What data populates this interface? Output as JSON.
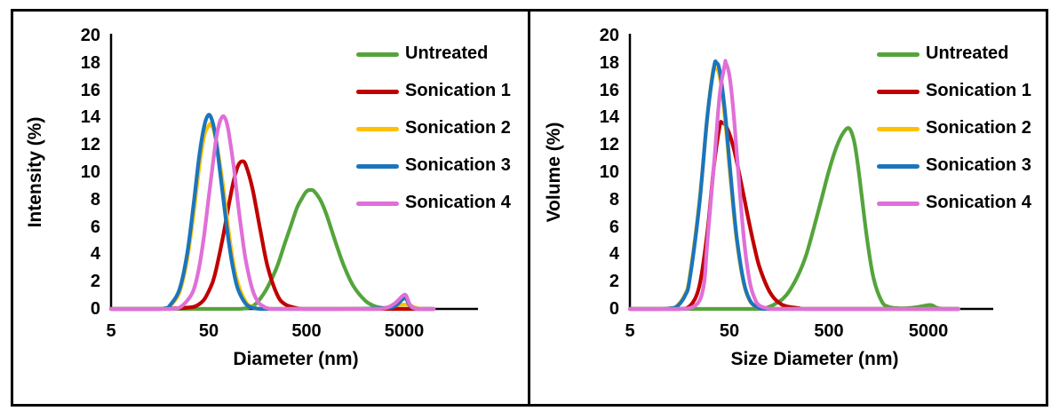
{
  "figure": {
    "description": "Two-panel particle size distribution figure",
    "border_color": "#000000",
    "background_color": "#ffffff"
  },
  "chart_data": [
    {
      "type": "line",
      "title": "",
      "xlabel": "Diameter (nm)",
      "ylabel": "Intensity (%)",
      "x_scale": "log",
      "xlim": [
        5,
        10000
      ],
      "ylim": [
        0,
        20
      ],
      "x_ticks": [
        5,
        50,
        500,
        5000
      ],
      "y_ticks": [
        0,
        2,
        4,
        6,
        8,
        10,
        12,
        14,
        16,
        18,
        20
      ],
      "grid": false,
      "legend_position": "upper-right",
      "series": [
        {
          "name": "Untreated",
          "color": "#54A43B",
          "points": [
            [
              5,
              0
            ],
            [
              50,
              0
            ],
            [
              100,
              0
            ],
            [
              130,
              0.1
            ],
            [
              150,
              0.35
            ],
            [
              170,
              0.8
            ],
            [
              200,
              1.6
            ],
            [
              250,
              3.1
            ],
            [
              300,
              4.8
            ],
            [
              350,
              6.2
            ],
            [
              400,
              7.4
            ],
            [
              450,
              8.1
            ],
            [
              500,
              8.6
            ],
            [
              550,
              8.7
            ],
            [
              600,
              8.6
            ],
            [
              700,
              7.9
            ],
            [
              800,
              6.9
            ],
            [
              1000,
              4.8
            ],
            [
              1200,
              3.2
            ],
            [
              1500,
              1.7
            ],
            [
              2000,
              0.6
            ],
            [
              2500,
              0.2
            ],
            [
              3000,
              0.08
            ],
            [
              3500,
              0.03
            ],
            [
              4000,
              0
            ],
            [
              10000,
              0
            ]
          ]
        },
        {
          "name": "Sonication 1",
          "color": "#C00000",
          "points": [
            [
              5,
              0
            ],
            [
              15,
              0
            ],
            [
              25,
              0.05
            ],
            [
              30,
              0.1
            ],
            [
              35,
              0.15
            ],
            [
              40,
              0.35
            ],
            [
              45,
              0.7
            ],
            [
              50,
              1.3
            ],
            [
              55,
              2.0
            ],
            [
              60,
              3.0
            ],
            [
              70,
              5.3
            ],
            [
              80,
              7.6
            ],
            [
              90,
              9.4
            ],
            [
              100,
              10.5
            ],
            [
              110,
              10.8
            ],
            [
              120,
              10.5
            ],
            [
              140,
              8.8
            ],
            [
              170,
              5.6
            ],
            [
              200,
              3.1
            ],
            [
              250,
              1.05
            ],
            [
              300,
              0.35
            ],
            [
              400,
              0.05
            ],
            [
              500,
              0
            ],
            [
              1000,
              0
            ],
            [
              5000,
              0
            ],
            [
              10000,
              0
            ]
          ]
        },
        {
          "name": "Sonication 2",
          "color": "#FFC000",
          "points": [
            [
              5,
              0
            ],
            [
              10,
              0
            ],
            [
              15,
              0
            ],
            [
              18,
              0.05
            ],
            [
              20,
              0.2
            ],
            [
              25,
              1.2
            ],
            [
              30,
              3.6
            ],
            [
              35,
              7.0
            ],
            [
              40,
              10.4
            ],
            [
              45,
              12.7
            ],
            [
              50,
              13.4
            ],
            [
              53,
              13.5
            ],
            [
              58,
              12.7
            ],
            [
              65,
              10.6
            ],
            [
              70,
              9.0
            ],
            [
              80,
              5.6
            ],
            [
              90,
              3.2
            ],
            [
              100,
              1.8
            ],
            [
              120,
              0.5
            ],
            [
              140,
              0.15
            ],
            [
              170,
              0
            ],
            [
              300,
              0
            ],
            [
              1000,
              0
            ],
            [
              2500,
              0
            ],
            [
              3500,
              0.15
            ],
            [
              4500,
              0.3
            ],
            [
              5500,
              0.3
            ],
            [
              6500,
              0.1
            ],
            [
              7500,
              0
            ],
            [
              10000,
              0
            ]
          ]
        },
        {
          "name": "Sonication 3",
          "color": "#1B75BC",
          "points": [
            [
              5,
              0
            ],
            [
              10,
              0
            ],
            [
              15,
              0
            ],
            [
              18,
              0.05
            ],
            [
              20,
              0.25
            ],
            [
              25,
              1.4
            ],
            [
              30,
              4.0
            ],
            [
              35,
              7.7
            ],
            [
              40,
              11.2
            ],
            [
              45,
              13.4
            ],
            [
              50,
              14.2
            ],
            [
              55,
              13.6
            ],
            [
              60,
              12.1
            ],
            [
              70,
              8.2
            ],
            [
              80,
              4.9
            ],
            [
              90,
              2.7
            ],
            [
              100,
              1.4
            ],
            [
              120,
              0.36
            ],
            [
              140,
              0.1
            ],
            [
              170,
              0
            ],
            [
              300,
              0
            ],
            [
              1000,
              0
            ],
            [
              3000,
              0.05
            ],
            [
              4000,
              0.2
            ],
            [
              4800,
              0.7
            ],
            [
              5200,
              0.75
            ],
            [
              5600,
              0.35
            ],
            [
              6000,
              0.1
            ],
            [
              7000,
              0
            ],
            [
              10000,
              0
            ]
          ]
        },
        {
          "name": "Sonication 4",
          "color": "#E06FD8",
          "points": [
            [
              5,
              0
            ],
            [
              10,
              0
            ],
            [
              20,
              0
            ],
            [
              25,
              0.1
            ],
            [
              30,
              0.6
            ],
            [
              35,
              1.4
            ],
            [
              40,
              3.1
            ],
            [
              45,
              5.5
            ],
            [
              50,
              8.2
            ],
            [
              55,
              10.6
            ],
            [
              60,
              12.6
            ],
            [
              65,
              13.7
            ],
            [
              70,
              14.1
            ],
            [
              75,
              13.8
            ],
            [
              80,
              12.9
            ],
            [
              90,
              10.4
            ],
            [
              100,
              7.6
            ],
            [
              110,
              5.3
            ],
            [
              120,
              3.5
            ],
            [
              140,
              1.4
            ],
            [
              160,
              0.5
            ],
            [
              180,
              0.2
            ],
            [
              200,
              0.05
            ],
            [
              250,
              0
            ],
            [
              1000,
              0
            ],
            [
              2500,
              0
            ],
            [
              3200,
              0.05
            ],
            [
              4000,
              0.4
            ],
            [
              4800,
              0.95
            ],
            [
              5200,
              1.0
            ],
            [
              5600,
              0.45
            ],
            [
              6000,
              0.15
            ],
            [
              6800,
              0
            ],
            [
              10000,
              0
            ]
          ]
        }
      ]
    },
    {
      "type": "line",
      "title": "",
      "xlabel": "Size Diameter (nm)",
      "ylabel": "Volume (%)",
      "x_scale": "log",
      "xlim": [
        5,
        10000
      ],
      "ylim": [
        0,
        20
      ],
      "x_ticks": [
        5,
        50,
        500,
        5000
      ],
      "y_ticks": [
        0,
        2,
        4,
        6,
        8,
        10,
        12,
        14,
        16,
        18,
        20
      ],
      "grid": false,
      "legend_position": "upper-right",
      "series": [
        {
          "name": "Untreated",
          "color": "#54A43B",
          "points": [
            [
              5,
              0
            ],
            [
              50,
              0
            ],
            [
              100,
              0
            ],
            [
              130,
              0.2
            ],
            [
              150,
              0.45
            ],
            [
              170,
              0.7
            ],
            [
              200,
              1.3
            ],
            [
              250,
              2.6
            ],
            [
              300,
              4.1
            ],
            [
              400,
              7.4
            ],
            [
              500,
              10.1
            ],
            [
              600,
              11.9
            ],
            [
              700,
              12.9
            ],
            [
              800,
              13.2
            ],
            [
              900,
              12.2
            ],
            [
              1000,
              10.0
            ],
            [
              1200,
              5.3
            ],
            [
              1400,
              2.3
            ],
            [
              1700,
              0.55
            ],
            [
              2000,
              0.15
            ],
            [
              2500,
              0.05
            ],
            [
              3000,
              0.05
            ],
            [
              4000,
              0.15
            ],
            [
              5000,
              0.28
            ],
            [
              5500,
              0.25
            ],
            [
              6000,
              0.1
            ],
            [
              7000,
              0
            ],
            [
              10000,
              0
            ]
          ]
        },
        {
          "name": "Sonication 1",
          "color": "#C00000",
          "points": [
            [
              5,
              0
            ],
            [
              15,
              0
            ],
            [
              20,
              0.2
            ],
            [
              25,
              1.7
            ],
            [
              30,
              5.6
            ],
            [
              35,
              10.5
            ],
            [
              40,
              13.4
            ],
            [
              42,
              13.6
            ],
            [
              45,
              13.5
            ],
            [
              50,
              12.8
            ],
            [
              55,
              11.8
            ],
            [
              60,
              10.6
            ],
            [
              70,
              8.2
            ],
            [
              80,
              6.1
            ],
            [
              90,
              4.4
            ],
            [
              100,
              3.1
            ],
            [
              120,
              1.6
            ],
            [
              140,
              0.8
            ],
            [
              170,
              0.3
            ],
            [
              200,
              0.15
            ],
            [
              250,
              0.05
            ],
            [
              300,
              0
            ],
            [
              1000,
              0
            ],
            [
              5000,
              0
            ],
            [
              10000,
              0
            ]
          ]
        },
        {
          "name": "Sonication 2",
          "color": "#FFC000",
          "points": [
            [
              5,
              0
            ],
            [
              10,
              0
            ],
            [
              13,
              0.05
            ],
            [
              15,
              0.25
            ],
            [
              18,
              1.1
            ],
            [
              20,
              2.4
            ],
            [
              25,
              7.9
            ],
            [
              30,
              14.0
            ],
            [
              34,
              17.3
            ],
            [
              36,
              17.6
            ],
            [
              40,
              17.0
            ],
            [
              45,
              14.0
            ],
            [
              50,
              10.4
            ],
            [
              55,
              7.2
            ],
            [
              60,
              4.7
            ],
            [
              70,
              1.8
            ],
            [
              80,
              0.6
            ],
            [
              90,
              0.2
            ],
            [
              100,
              0.07
            ],
            [
              120,
              0
            ],
            [
              500,
              0
            ],
            [
              5000,
              0
            ],
            [
              10000,
              0
            ]
          ]
        },
        {
          "name": "Sonication 3",
          "color": "#1B75BC",
          "points": [
            [
              5,
              0
            ],
            [
              10,
              0
            ],
            [
              13,
              0.05
            ],
            [
              15,
              0.2
            ],
            [
              18,
              1.0
            ],
            [
              20,
              2.2
            ],
            [
              25,
              7.7
            ],
            [
              30,
              14.1
            ],
            [
              35,
              17.7
            ],
            [
              37,
              18.0
            ],
            [
              40,
              17.4
            ],
            [
              45,
              14.5
            ],
            [
              50,
              10.8
            ],
            [
              55,
              7.5
            ],
            [
              60,
              4.9
            ],
            [
              70,
              1.9
            ],
            [
              80,
              0.65
            ],
            [
              90,
              0.22
            ],
            [
              100,
              0.08
            ],
            [
              120,
              0
            ],
            [
              500,
              0
            ],
            [
              5000,
              0
            ],
            [
              10000,
              0
            ]
          ]
        },
        {
          "name": "Sonication 4",
          "color": "#E06FD8",
          "points": [
            [
              5,
              0
            ],
            [
              15,
              0
            ],
            [
              20,
              0.05
            ],
            [
              25,
              0.6
            ],
            [
              28,
              2.0
            ],
            [
              30,
              4.9
            ],
            [
              35,
              10.6
            ],
            [
              40,
              15.7
            ],
            [
              45,
              17.9
            ],
            [
              46,
              18.0
            ],
            [
              50,
              17.1
            ],
            [
              55,
              14.4
            ],
            [
              60,
              10.9
            ],
            [
              70,
              5.1
            ],
            [
              80,
              2.0
            ],
            [
              90,
              0.75
            ],
            [
              100,
              0.25
            ],
            [
              120,
              0.05
            ],
            [
              140,
              0
            ],
            [
              500,
              0
            ],
            [
              5000,
              0
            ],
            [
              10000,
              0
            ]
          ]
        }
      ]
    }
  ]
}
